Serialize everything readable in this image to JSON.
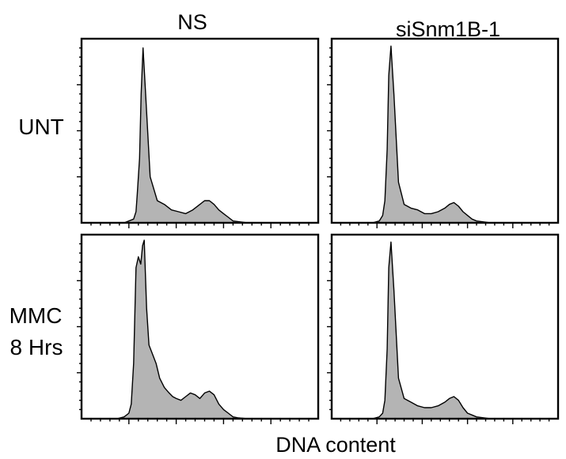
{
  "figure": {
    "columns": [
      "NS",
      "siSnm1B-1"
    ],
    "rows": [
      [
        "UNT"
      ],
      [
        "MMC",
        "8 Hrs"
      ]
    ],
    "xlabel": "DNA content"
  },
  "chart_data": [
    {
      "type": "area",
      "row": "UNT",
      "column": "NS",
      "xlabel": "DNA content",
      "ylabel": "",
      "xlim": [
        0,
        100
      ],
      "ylim": [
        0,
        100
      ],
      "x": [
        0,
        18,
        22,
        23,
        23.5,
        24.5,
        25.2,
        26,
        27,
        29,
        32,
        35,
        38,
        41,
        44,
        47,
        50,
        52,
        54,
        56,
        58,
        60,
        62,
        64,
        67,
        70,
        100
      ],
      "values": [
        0,
        0,
        2,
        6,
        15,
        35,
        70,
        95,
        72,
        25,
        12,
        10,
        7,
        6,
        5,
        7,
        10,
        12,
        12,
        10,
        7,
        5,
        3,
        1,
        0.5,
        0,
        0
      ]
    },
    {
      "type": "area",
      "row": "UNT",
      "column": "siSnm1B-1",
      "xlabel": "DNA content",
      "ylabel": "",
      "xlim": [
        0,
        100
      ],
      "ylim": [
        0,
        100
      ],
      "x": [
        0,
        18,
        21,
        22.5,
        23.5,
        24.5,
        25.2,
        26.2,
        27.5,
        29.5,
        32,
        35,
        38,
        41,
        44,
        47,
        50,
        52,
        54,
        56,
        58,
        60,
        62,
        64,
        67,
        70,
        100
      ],
      "values": [
        0,
        0,
        1,
        4,
        12,
        40,
        80,
        96,
        70,
        22,
        10,
        8,
        7,
        5,
        5,
        6,
        8,
        10,
        11,
        9,
        6,
        4,
        2,
        1,
        0.5,
        0,
        0
      ]
    },
    {
      "type": "area",
      "row": "MMC 8 Hrs",
      "column": "NS",
      "xlabel": "DNA content",
      "ylabel": "",
      "xlim": [
        0,
        100
      ],
      "ylim": [
        0,
        100
      ],
      "x": [
        0,
        15,
        18,
        20,
        21,
        22,
        23,
        24,
        25,
        25.8,
        26.5,
        27.5,
        28.5,
        30,
        31.5,
        33,
        35,
        37,
        38.5,
        40,
        42,
        44,
        46,
        48,
        50,
        52,
        54,
        56,
        58,
        60,
        62,
        64,
        66,
        70,
        100
      ],
      "values": [
        0,
        0,
        1,
        3,
        8,
        30,
        82,
        88,
        84,
        94,
        97,
        60,
        40,
        35,
        30,
        22,
        17,
        14,
        12,
        11,
        10,
        12,
        14,
        13,
        11,
        14,
        15,
        13,
        8,
        5,
        3,
        1,
        0.5,
        0,
        0
      ]
    },
    {
      "type": "area",
      "row": "MMC 8 Hrs",
      "column": "siSnm1B-1",
      "xlabel": "DNA content",
      "ylabel": "",
      "xlim": [
        0,
        100
      ],
      "ylim": [
        0,
        100
      ],
      "x": [
        0,
        18,
        21,
        22.5,
        23.5,
        24.5,
        25.2,
        26.2,
        27.5,
        29.5,
        32,
        35,
        38,
        41,
        44,
        47,
        50,
        52,
        54,
        56,
        58,
        60,
        62,
        64,
        67,
        70,
        100
      ],
      "values": [
        0,
        0,
        1,
        3,
        10,
        38,
        82,
        96,
        70,
        22,
        11,
        9,
        7,
        6,
        6,
        7,
        9,
        11,
        12,
        10,
        6,
        3,
        2,
        1,
        0.5,
        0,
        0
      ]
    }
  ]
}
